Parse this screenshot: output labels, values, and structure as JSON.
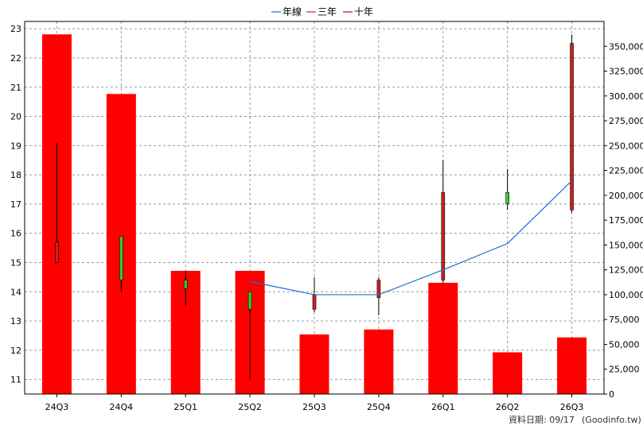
{
  "legend": {
    "items": [
      {
        "label": "年線",
        "color": "#1f6fd1"
      },
      {
        "label": "三年",
        "color": "#e02020"
      },
      {
        "label": "十年",
        "color": "#b01010"
      }
    ]
  },
  "footer": {
    "date_text": "資料日期: 09/17",
    "source_text": "(Goodinfo.tw)"
  },
  "chart_data": {
    "type": "candlestick",
    "categories": [
      "24Q3",
      "24Q4",
      "25Q1",
      "25Q2",
      "25Q3",
      "25Q4",
      "26Q1",
      "26Q2",
      "26Q3"
    ],
    "price_axis": {
      "min": 10.5,
      "max": 23.25,
      "ticks": [
        11,
        12,
        13,
        14,
        15,
        16,
        17,
        18,
        19,
        20,
        21,
        22,
        23
      ]
    },
    "volume_axis": {
      "min": 0,
      "max": 375000,
      "ticks": [
        0,
        25000,
        50000,
        75000,
        100000,
        125000,
        150000,
        175000,
        200000,
        225000,
        250000,
        275000,
        300000,
        325000,
        350000
      ],
      "tick_labels": [
        "0",
        "25,000",
        "50,000",
        "75,000",
        "100,000",
        "125,000",
        "150,000",
        "175,000",
        "200,000",
        "225,000",
        "250,000",
        "275,000",
        "300,000",
        "325,000",
        "350,000"
      ]
    },
    "candles": [
      {
        "open": 15.0,
        "close": 15.7,
        "high": 19.1,
        "low": 15.0,
        "color": "#cc2222"
      },
      {
        "open": 15.9,
        "close": 14.4,
        "high": 15.9,
        "low": 14.0,
        "color": "#33cc33"
      },
      {
        "open": 14.4,
        "close": 14.1,
        "high": 14.7,
        "low": 13.5,
        "color": "#33cc33"
      },
      {
        "open": 14.0,
        "close": 13.4,
        "high": 14.0,
        "low": 11.0,
        "color": "#33cc33"
      },
      {
        "open": 13.4,
        "close": 13.9,
        "high": 14.5,
        "low": 13.3,
        "color": "#cc2222"
      },
      {
        "open": 13.8,
        "close": 14.4,
        "high": 14.5,
        "low": 13.2,
        "color": "#cc2222"
      },
      {
        "open": 14.4,
        "close": 17.4,
        "high": 18.5,
        "low": 14.3,
        "color": "#cc2222"
      },
      {
        "open": 17.4,
        "close": 17.0,
        "high": 18.2,
        "low": 16.8,
        "color": "#33cc33"
      },
      {
        "open": 16.8,
        "close": 22.5,
        "high": 22.8,
        "low": 16.7,
        "color": "#cc2222"
      }
    ],
    "volume": [
      362000,
      302000,
      124000,
      124000,
      60000,
      65000,
      112000,
      42000,
      57000
    ],
    "annual_line": [
      null,
      null,
      null,
      14.35,
      13.9,
      13.9,
      14.75,
      15.65,
      17.8
    ],
    "grid": true,
    "legend_position": "top-center"
  }
}
